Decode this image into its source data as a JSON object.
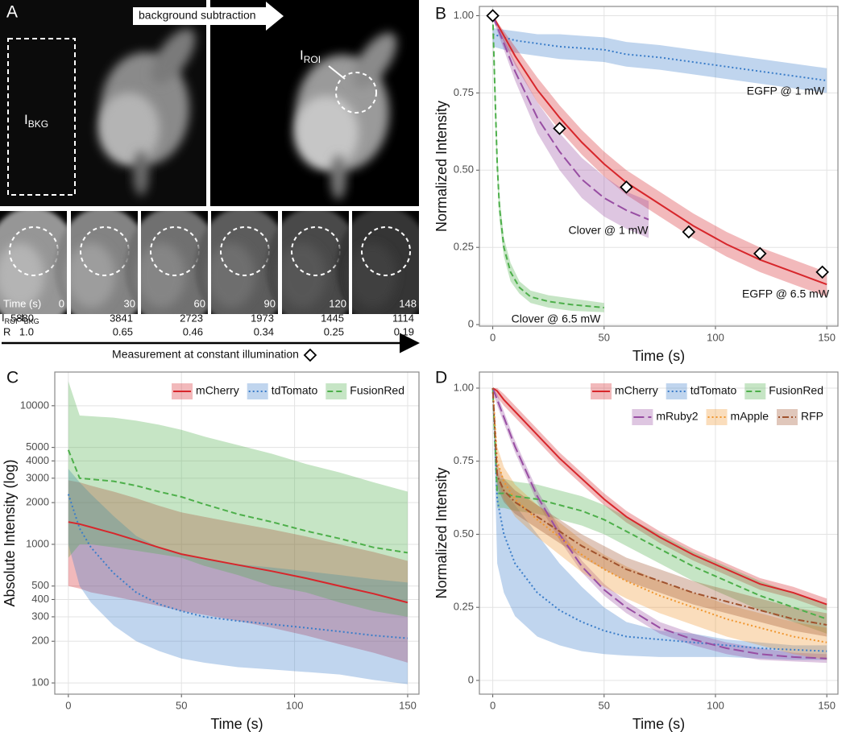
{
  "panel_a": {
    "panel_label": "A",
    "arrow_text": "background subtraction",
    "bkg_label": {
      "main": "I",
      "sub": "BKG"
    },
    "roi_label": {
      "main": "I",
      "sub": "ROI"
    },
    "time_label": "Time (s)",
    "times": [
      0,
      30,
      60,
      90,
      120,
      148
    ],
    "diff_label": [
      {
        "text": "I"
      },
      {
        "text": "ROI",
        "sub": true
      },
      {
        "text": "-I"
      },
      {
        "text": "BKG",
        "sub": true
      }
    ],
    "diff_values": [
      5880,
      3841,
      2723,
      1973,
      1445,
      1114
    ],
    "r_label": "R",
    "r_values": [
      "1.0",
      "0.65",
      "0.46",
      "0.34",
      "0.25",
      "0.19"
    ],
    "caption": "Measurement at constant illumination"
  },
  "chart_data": [
    {
      "type": "line",
      "panel_label": "B",
      "x_label": "Time (s)",
      "y_label": "Normalized Intensity",
      "xlim": [
        -6,
        155
      ],
      "ylim": [
        -0.005,
        1.03
      ],
      "xticks": [
        0,
        50,
        100,
        150
      ],
      "yticks": [
        {
          "value": 0,
          "label": "0"
        },
        0.25,
        {
          "value": 0.5,
          "label": "0.50"
        },
        0.75,
        {
          "value": 1,
          "label": "1.00"
        }
      ],
      "grid": true,
      "log_scale": false,
      "series": [
        {
          "name": "EGFP @ 1 mW",
          "color": "#3a7dc9",
          "linestyle": "dotted",
          "x": [
            0,
            10,
            20,
            30,
            40,
            50,
            60,
            75,
            90,
            105,
            120,
            135,
            150
          ],
          "values": [
            0.94,
            0.92,
            0.91,
            0.9,
            0.895,
            0.89,
            0.875,
            0.865,
            0.85,
            0.835,
            0.82,
            0.805,
            0.79
          ],
          "lower": [
            0.9,
            0.88,
            0.87,
            0.86,
            0.855,
            0.85,
            0.835,
            0.825,
            0.81,
            0.795,
            0.78,
            0.765,
            0.75
          ],
          "upper": [
            0.96,
            0.95,
            0.94,
            0.94,
            0.935,
            0.93,
            0.915,
            0.905,
            0.89,
            0.875,
            0.86,
            0.845,
            0.83
          ]
        },
        {
          "name": "EGFP @ 6.5 mW",
          "color": "#d7262b",
          "linestyle": "solid",
          "x": [
            0,
            10,
            20,
            30,
            40,
            50,
            60,
            75,
            90,
            105,
            120,
            135,
            150
          ],
          "values": [
            1.0,
            0.87,
            0.76,
            0.67,
            0.59,
            0.52,
            0.46,
            0.39,
            0.32,
            0.26,
            0.21,
            0.17,
            0.13
          ],
          "lower": [
            0.99,
            0.84,
            0.72,
            0.63,
            0.55,
            0.48,
            0.42,
            0.35,
            0.28,
            0.22,
            0.17,
            0.13,
            0.09
          ],
          "upper": [
            1.0,
            0.9,
            0.8,
            0.71,
            0.63,
            0.56,
            0.5,
            0.43,
            0.36,
            0.3,
            0.25,
            0.21,
            0.17
          ]
        },
        {
          "name": "Clover @ 1 mW",
          "color": "#984ea3",
          "linestyle": "longdash",
          "x": [
            0,
            10,
            20,
            30,
            40,
            50,
            60,
            70
          ],
          "values": [
            1.0,
            0.82,
            0.67,
            0.56,
            0.47,
            0.41,
            0.37,
            0.34
          ],
          "lower": [
            0.99,
            0.79,
            0.62,
            0.5,
            0.41,
            0.35,
            0.31,
            0.28
          ],
          "upper": [
            1.0,
            0.85,
            0.72,
            0.62,
            0.54,
            0.48,
            0.43,
            0.4
          ]
        },
        {
          "name": "Clover @ 6.5 mW",
          "color": "#4daf4a",
          "linestyle": "dashed",
          "x": [
            0,
            1,
            2,
            3,
            5,
            8,
            12,
            17,
            25,
            35,
            50
          ],
          "values": [
            1.0,
            0.75,
            0.52,
            0.38,
            0.25,
            0.17,
            0.12,
            0.09,
            0.075,
            0.065,
            0.055
          ],
          "lower": [
            0.98,
            0.71,
            0.48,
            0.34,
            0.22,
            0.14,
            0.1,
            0.07,
            0.055,
            0.045,
            0.04
          ],
          "upper": [
            1.0,
            0.79,
            0.56,
            0.42,
            0.28,
            0.2,
            0.14,
            0.11,
            0.095,
            0.085,
            0.07
          ]
        }
      ],
      "markers": {
        "x": [
          0,
          30,
          60,
          88,
          120,
          148
        ],
        "values": [
          1.0,
          0.635,
          0.445,
          0.3,
          0.23,
          0.17
        ]
      }
    },
    {
      "type": "line",
      "panel_label": "C",
      "x_label": "Time (s)",
      "y_label": "Absolute Intensity (log)",
      "xlim": [
        -6,
        155
      ],
      "ylim": [
        83,
        17500
      ],
      "log_scale": true,
      "grid": true,
      "legend": "top-right",
      "xticks": [
        0,
        50,
        100,
        150
      ],
      "yticks": [
        100,
        200,
        300,
        400,
        500,
        1000,
        2000,
        3000,
        4000,
        5000,
        10000
      ],
      "series": [
        {
          "name": "mCherry",
          "color": "#d7262b",
          "linestyle": "solid",
          "x": [
            0,
            5,
            10,
            20,
            30,
            40,
            50,
            60,
            75,
            90,
            105,
            120,
            135,
            150
          ],
          "values": [
            1450,
            1400,
            1330,
            1200,
            1070,
            950,
            850,
            790,
            710,
            640,
            570,
            500,
            440,
            380
          ],
          "lower": [
            500,
            480,
            450,
            420,
            390,
            360,
            330,
            310,
            280,
            250,
            220,
            190,
            165,
            140
          ],
          "upper": [
            2900,
            2800,
            2650,
            2400,
            2150,
            1900,
            1700,
            1580,
            1420,
            1280,
            1140,
            1000,
            880,
            760
          ]
        },
        {
          "name": "tdTomato",
          "color": "#3a7dc9",
          "linestyle": "dotted",
          "x": [
            0,
            5,
            10,
            20,
            30,
            40,
            50,
            60,
            75,
            90,
            105,
            120,
            135,
            150
          ],
          "values": [
            2300,
            1300,
            950,
            620,
            450,
            370,
            330,
            300,
            280,
            265,
            250,
            235,
            220,
            210
          ],
          "lower": [
            1000,
            500,
            380,
            260,
            200,
            170,
            150,
            140,
            130,
            125,
            120,
            115,
            105,
            98
          ],
          "upper": [
            3500,
            2800,
            2300,
            1600,
            1150,
            950,
            850,
            780,
            720,
            680,
            640,
            600,
            560,
            530
          ]
        },
        {
          "name": "FusionRed",
          "color": "#4daf4a",
          "linestyle": "dashed",
          "x": [
            0,
            5,
            10,
            20,
            30,
            40,
            50,
            60,
            75,
            90,
            105,
            120,
            135,
            150
          ],
          "values": [
            4800,
            3000,
            2950,
            2850,
            2650,
            2400,
            2200,
            1950,
            1650,
            1450,
            1250,
            1100,
            950,
            870
          ],
          "lower": [
            800,
            1000,
            1000,
            950,
            900,
            850,
            800,
            700,
            600,
            500,
            450,
            380,
            330,
            300
          ],
          "upper": [
            15000,
            8500,
            8400,
            8200,
            7800,
            7300,
            6700,
            6000,
            5200,
            4500,
            3800,
            3300,
            2800,
            2400
          ]
        }
      ]
    },
    {
      "type": "line",
      "panel_label": "D",
      "x_label": "Time (s)",
      "y_label": "Normalized Intensity",
      "xlim": [
        -6,
        155
      ],
      "ylim": [
        -0.047,
        1.055
      ],
      "log_scale": false,
      "grid": true,
      "legend": "top-right",
      "xticks": [
        0,
        50,
        100,
        150
      ],
      "yticks": [
        {
          "value": 0,
          "label": "0"
        },
        0.25,
        {
          "value": 0.5,
          "label": "0.50"
        },
        0.75,
        {
          "value": 1,
          "label": "1.00"
        }
      ],
      "series": [
        {
          "name": "mCherry",
          "color": "#d7262b",
          "linestyle": "solid",
          "x": [
            0,
            2,
            5,
            10,
            20,
            30,
            40,
            50,
            60,
            75,
            90,
            105,
            120,
            135,
            150
          ],
          "values": [
            1.0,
            0.99,
            0.96,
            0.92,
            0.84,
            0.76,
            0.69,
            0.62,
            0.56,
            0.49,
            0.43,
            0.38,
            0.33,
            0.3,
            0.26
          ],
          "lower": [
            0.99,
            0.97,
            0.94,
            0.9,
            0.82,
            0.74,
            0.67,
            0.6,
            0.54,
            0.47,
            0.41,
            0.36,
            0.31,
            0.28,
            0.24
          ],
          "upper": [
            1.0,
            1.0,
            0.98,
            0.94,
            0.86,
            0.78,
            0.71,
            0.64,
            0.58,
            0.51,
            0.45,
            0.4,
            0.35,
            0.32,
            0.28
          ]
        },
        {
          "name": "tdTomato",
          "color": "#3a7dc9",
          "linestyle": "dotted",
          "x": [
            0,
            2,
            5,
            10,
            20,
            30,
            40,
            50,
            60,
            75,
            90,
            105,
            120,
            135,
            150
          ],
          "values": [
            1.0,
            0.62,
            0.5,
            0.4,
            0.3,
            0.24,
            0.2,
            0.17,
            0.15,
            0.14,
            0.13,
            0.12,
            0.11,
            0.105,
            0.1
          ],
          "lower": [
            0.98,
            0.4,
            0.3,
            0.22,
            0.15,
            0.12,
            0.1,
            0.09,
            0.085,
            0.08,
            0.08,
            0.08,
            0.075,
            0.07,
            0.07
          ],
          "upper": [
            1.0,
            0.72,
            0.65,
            0.6,
            0.5,
            0.4,
            0.32,
            0.25,
            0.2,
            0.17,
            0.16,
            0.14,
            0.13,
            0.12,
            0.12
          ]
        },
        {
          "name": "FusionRed",
          "color": "#4daf4a",
          "linestyle": "dashed",
          "x": [
            0,
            2,
            5,
            10,
            20,
            30,
            40,
            50,
            60,
            75,
            90,
            105,
            120,
            135,
            150
          ],
          "values": [
            1.0,
            0.64,
            0.64,
            0.63,
            0.62,
            0.6,
            0.58,
            0.55,
            0.51,
            0.45,
            0.39,
            0.34,
            0.29,
            0.25,
            0.21
          ],
          "lower": [
            0.98,
            0.59,
            0.59,
            0.58,
            0.57,
            0.55,
            0.53,
            0.5,
            0.46,
            0.4,
            0.34,
            0.29,
            0.24,
            0.2,
            0.16
          ],
          "upper": [
            1.0,
            0.69,
            0.69,
            0.68,
            0.67,
            0.65,
            0.63,
            0.6,
            0.56,
            0.5,
            0.44,
            0.39,
            0.34,
            0.3,
            0.26
          ]
        },
        {
          "name": "mRuby2",
          "color": "#984ea3",
          "linestyle": "longdash",
          "x": [
            0,
            2,
            5,
            10,
            20,
            30,
            40,
            50,
            60,
            75,
            90,
            105,
            120,
            135,
            150
          ],
          "values": [
            1.0,
            0.96,
            0.9,
            0.8,
            0.63,
            0.5,
            0.39,
            0.31,
            0.25,
            0.18,
            0.14,
            0.11,
            0.09,
            0.08,
            0.075
          ],
          "lower": [
            0.99,
            0.94,
            0.88,
            0.78,
            0.61,
            0.48,
            0.37,
            0.29,
            0.23,
            0.16,
            0.12,
            0.09,
            0.07,
            0.065,
            0.06
          ],
          "upper": [
            1.0,
            0.98,
            0.92,
            0.82,
            0.65,
            0.52,
            0.41,
            0.33,
            0.27,
            0.2,
            0.16,
            0.13,
            0.11,
            0.095,
            0.09
          ]
        },
        {
          "name": "mApple",
          "color": "#f0962e",
          "linestyle": "dotted",
          "x": [
            0,
            2,
            5,
            10,
            20,
            30,
            40,
            50,
            60,
            75,
            90,
            105,
            120,
            135,
            150
          ],
          "values": [
            1.0,
            0.75,
            0.68,
            0.62,
            0.55,
            0.49,
            0.43,
            0.38,
            0.34,
            0.29,
            0.25,
            0.21,
            0.18,
            0.15,
            0.13
          ],
          "lower": [
            0.97,
            0.69,
            0.62,
            0.56,
            0.49,
            0.43,
            0.37,
            0.32,
            0.28,
            0.23,
            0.19,
            0.15,
            0.12,
            0.09,
            0.07
          ],
          "upper": [
            1.0,
            0.8,
            0.73,
            0.67,
            0.6,
            0.54,
            0.48,
            0.43,
            0.39,
            0.34,
            0.3,
            0.26,
            0.23,
            0.2,
            0.18
          ]
        },
        {
          "name": "RFP",
          "color": "#a0522d",
          "linestyle": "dotdash",
          "x": [
            0,
            2,
            5,
            10,
            20,
            30,
            40,
            50,
            60,
            75,
            90,
            105,
            120,
            135,
            150
          ],
          "values": [
            1.0,
            0.7,
            0.65,
            0.61,
            0.56,
            0.51,
            0.46,
            0.42,
            0.38,
            0.34,
            0.3,
            0.27,
            0.24,
            0.21,
            0.19
          ],
          "lower": [
            0.98,
            0.66,
            0.61,
            0.57,
            0.52,
            0.47,
            0.42,
            0.38,
            0.34,
            0.3,
            0.26,
            0.23,
            0.2,
            0.17,
            0.15
          ],
          "upper": [
            1.0,
            0.74,
            0.69,
            0.65,
            0.6,
            0.55,
            0.5,
            0.46,
            0.42,
            0.38,
            0.34,
            0.31,
            0.28,
            0.25,
            0.23
          ]
        }
      ]
    }
  ]
}
